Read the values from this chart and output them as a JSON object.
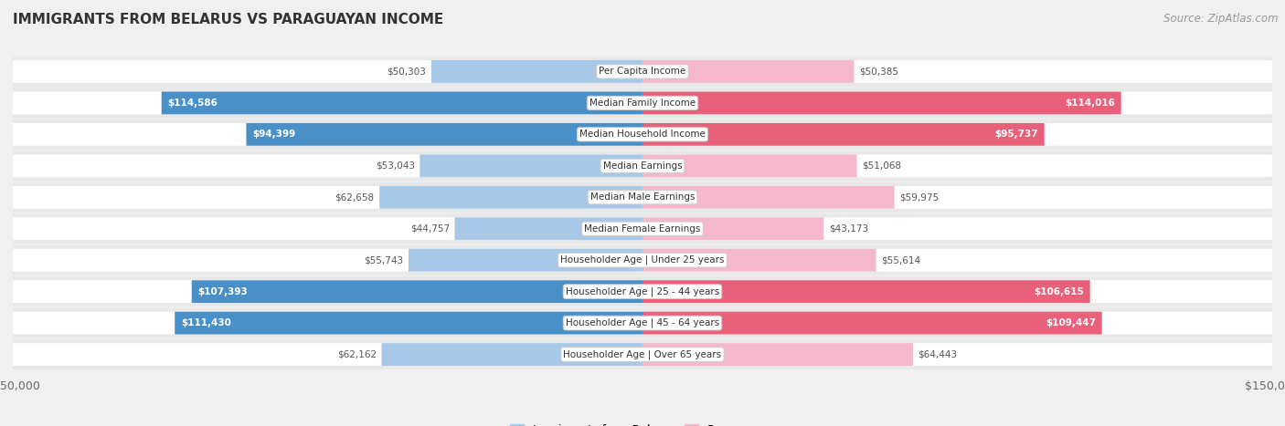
{
  "title": "IMMIGRANTS FROM BELARUS VS PARAGUAYAN INCOME",
  "source": "Source: ZipAtlas.com",
  "categories": [
    "Per Capita Income",
    "Median Family Income",
    "Median Household Income",
    "Median Earnings",
    "Median Male Earnings",
    "Median Female Earnings",
    "Householder Age | Under 25 years",
    "Householder Age | 25 - 44 years",
    "Householder Age | 45 - 64 years",
    "Householder Age | Over 65 years"
  ],
  "belarus_values": [
    50303,
    114586,
    94399,
    53043,
    62658,
    44757,
    55743,
    107393,
    111430,
    62162
  ],
  "paraguayan_values": [
    50385,
    114016,
    95737,
    51068,
    59975,
    43173,
    55614,
    106615,
    109447,
    64443
  ],
  "belarus_labels": [
    "$50,303",
    "$114,586",
    "$94,399",
    "$53,043",
    "$62,658",
    "$44,757",
    "$55,743",
    "$107,393",
    "$111,430",
    "$62,162"
  ],
  "paraguayan_labels": [
    "$50,385",
    "$114,016",
    "$95,737",
    "$51,068",
    "$59,975",
    "$43,173",
    "$55,614",
    "$106,615",
    "$109,447",
    "$64,443"
  ],
  "belarus_color_light": "#a8c8e8",
  "belarus_color_dark": "#4a90c8",
  "paraguayan_color_light": "#f5b8cc",
  "paraguayan_color_dark": "#e8607a",
  "label_threshold": 80000,
  "x_max": 150000,
  "bg_color": "#f0f0f0",
  "row_bg_light": "#e8e8e8",
  "row_bar_bg": "#ffffff",
  "legend_belarus": "Immigrants from Belarus",
  "legend_paraguayan": "Paraguayan",
  "title_color": "#333333",
  "source_color": "#999999",
  "label_color_outside": "#555555",
  "label_color_inside": "#ffffff"
}
